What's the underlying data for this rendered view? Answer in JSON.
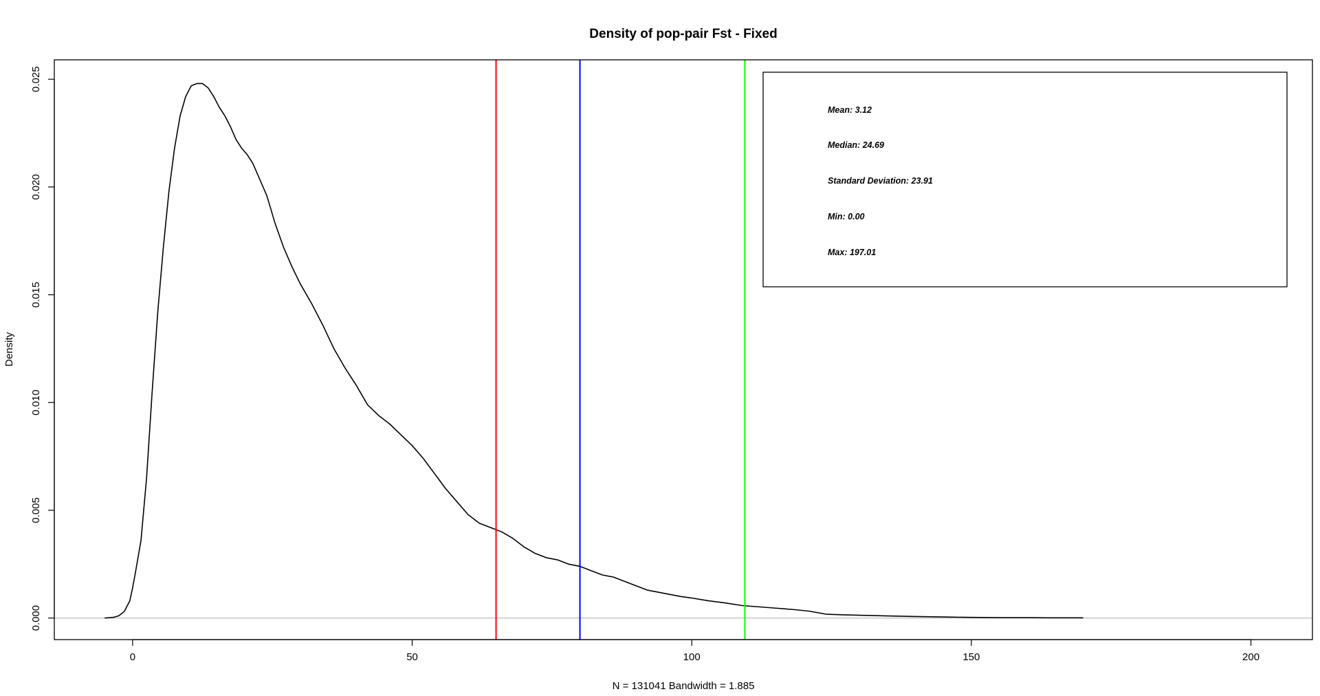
{
  "chart_data": {
    "type": "line",
    "title": "Density of pop-pair Fst - Fixed",
    "xlabel": "N = 131041   Bandwidth = 1.885",
    "ylabel": "Density",
    "xlim": [
      -14,
      211
    ],
    "ylim": [
      -0.001,
      0.0259
    ],
    "x_ticks": [
      0,
      50,
      100,
      150,
      200
    ],
    "x_tick_labels": [
      "0",
      "50",
      "100",
      "150",
      "200"
    ],
    "y_ticks": [
      0.0,
      0.005,
      0.01,
      0.015,
      0.02,
      0.025
    ],
    "y_tick_labels": [
      "0.000",
      "0.005",
      "0.010",
      "0.015",
      "0.020",
      "0.025"
    ],
    "baseline": 0,
    "series": [
      {
        "color": "#000000",
        "x": [
          -5,
          -3.5,
          -2.5,
          -1.5,
          -0.5,
          0,
          0.5,
          1.5,
          2.5,
          3.5,
          4.5,
          5.5,
          6.5,
          7.5,
          8.5,
          9.5,
          10.5,
          11.5,
          12.5,
          13.5,
          14.5,
          15.5,
          16.5,
          17.5,
          18.5,
          19.5,
          20.5,
          21.5,
          22.5,
          24,
          25.5,
          27,
          28.5,
          30,
          32,
          34,
          36,
          38,
          40,
          42,
          44,
          46,
          48,
          50,
          52,
          54,
          56,
          58,
          60,
          62,
          64,
          66,
          68,
          70,
          72,
          74,
          76,
          78,
          80,
          82,
          84,
          86,
          88,
          90,
          92,
          94,
          96,
          98,
          100,
          103,
          106,
          109,
          112,
          115,
          118,
          121,
          124,
          127,
          130,
          135,
          140,
          145,
          150,
          155,
          160,
          165,
          170
        ],
        "y": [
          0.0,
          3e-05,
          0.0001,
          0.0003,
          0.0008,
          0.0014,
          0.0021,
          0.0036,
          0.0065,
          0.0105,
          0.0142,
          0.0172,
          0.0198,
          0.0218,
          0.0233,
          0.0242,
          0.0247,
          0.0248,
          0.0248,
          0.0246,
          0.0242,
          0.0237,
          0.0233,
          0.0228,
          0.0222,
          0.0218,
          0.0215,
          0.0211,
          0.0205,
          0.0196,
          0.0183,
          0.0172,
          0.0163,
          0.0155,
          0.0146,
          0.0136,
          0.0125,
          0.0116,
          0.0108,
          0.0099,
          0.0094,
          0.009,
          0.0085,
          0.008,
          0.0074,
          0.0067,
          0.006,
          0.0054,
          0.0048,
          0.0044,
          0.0042,
          0.004,
          0.0037,
          0.0033,
          0.003,
          0.0028,
          0.0027,
          0.0025,
          0.0024,
          0.0022,
          0.002,
          0.0019,
          0.0017,
          0.0015,
          0.0013,
          0.0012,
          0.0011,
          0.001,
          0.00093,
          0.0008,
          0.0007,
          0.00058,
          0.00052,
          0.00046,
          0.0004,
          0.00032,
          0.00018,
          0.00015,
          0.00013,
          0.0001,
          7e-05,
          5e-05,
          3e-05,
          2e-05,
          2e-05,
          1e-05,
          1e-05
        ]
      }
    ],
    "vlines": [
      {
        "x": 65,
        "color": "#ff0000"
      },
      {
        "x": 80,
        "color": "#0000ff"
      },
      {
        "x": 109.5,
        "color": "#00ff00"
      }
    ],
    "stats_box": {
      "lines": [
        "Mean: 3.12",
        "Median: 24.69",
        "Standard Deviation: 23.91",
        "Min: 0.00",
        "Max: 197.01"
      ]
    }
  }
}
